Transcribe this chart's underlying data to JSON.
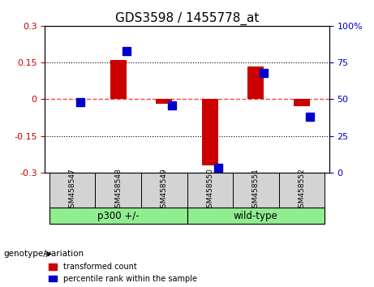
{
  "title": "GDS3598 / 1455778_at",
  "samples": [
    "GSM458547",
    "GSM458548",
    "GSM458549",
    "GSM458550",
    "GSM458551",
    "GSM458552"
  ],
  "red_values": [
    0.0,
    0.16,
    -0.02,
    -0.27,
    0.135,
    -0.03
  ],
  "blue_values_pct": [
    48,
    83,
    46,
    3,
    68,
    38
  ],
  "groups": [
    {
      "label": "p300 +/-",
      "indices": [
        0,
        1,
        2
      ],
      "color": "#90EE90"
    },
    {
      "label": "wild-type",
      "indices": [
        3,
        4,
        5
      ],
      "color": "#90EE90"
    }
  ],
  "group_colors": [
    "#90EE90",
    "#90EE90"
  ],
  "ylim_left": [
    -0.3,
    0.3
  ],
  "ylim_right": [
    0,
    100
  ],
  "yticks_left": [
    -0.3,
    -0.15,
    0.0,
    0.15,
    0.3
  ],
  "yticks_right": [
    0,
    25,
    50,
    75,
    100
  ],
  "ytick_labels_left": [
    "-0.3",
    "-0.15",
    "0",
    "0.15",
    "0.3"
  ],
  "ytick_labels_right": [
    "0",
    "25",
    "50",
    "75",
    "100%"
  ],
  "red_color": "#CC0000",
  "blue_color": "#0000CC",
  "dashed_red_color": "#FF4444",
  "bar_width": 0.35,
  "blue_marker_size": 7,
  "legend_labels": [
    "transformed count",
    "percentile rank within the sample"
  ],
  "genotype_label": "genotype/variation",
  "group_names": [
    "p300 +/-",
    "wild-type"
  ],
  "group_split": 3
}
